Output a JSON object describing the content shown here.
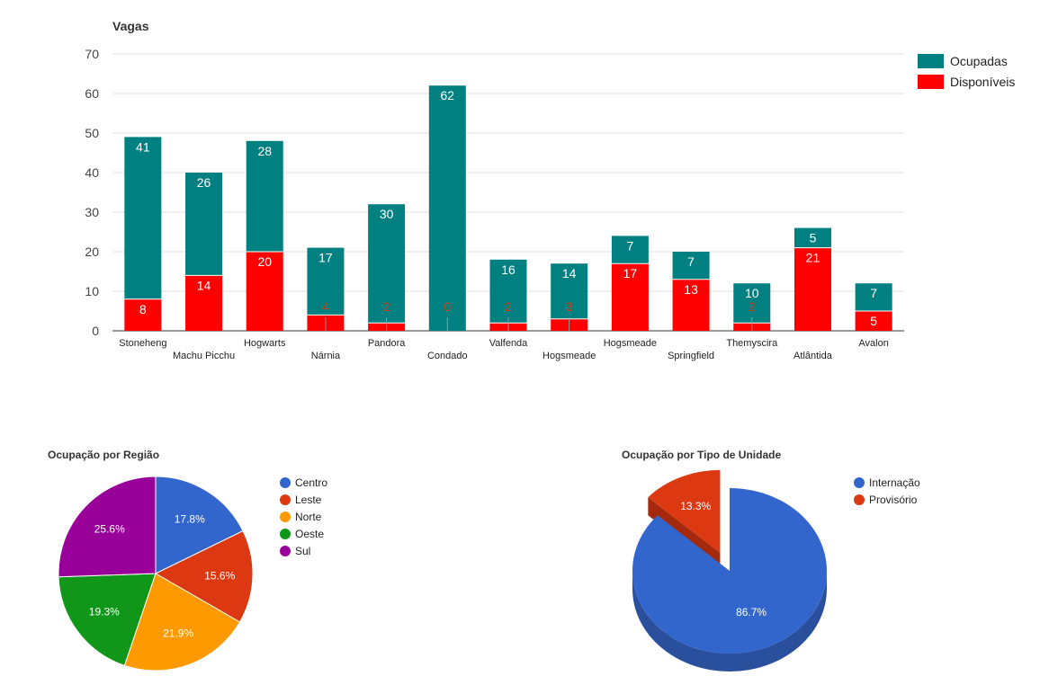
{
  "chart_data": [
    {
      "type": "bar",
      "stacked": true,
      "title": "Vagas",
      "categories": [
        "Stoneheng",
        "Machu Picchu",
        "Hogwarts",
        "Nárnia",
        "Pandora",
        "Condado",
        "Valfenda",
        "Hogsmeade",
        "Hogsmeade",
        "Springfield",
        "Themyscira",
        "Atlântida",
        "Avalon"
      ],
      "series": [
        {
          "name": "Disponíveis",
          "color": "#ff0000",
          "values": [
            8,
            14,
            20,
            4,
            2,
            0,
            2,
            3,
            17,
            13,
            2,
            21,
            5
          ]
        },
        {
          "name": "Ocupadas",
          "color": "#008080",
          "values": [
            41,
            26,
            28,
            17,
            30,
            62,
            16,
            14,
            7,
            7,
            10,
            5,
            7
          ]
        }
      ],
      "ylim": [
        0,
        70
      ],
      "yticks": [
        0,
        10,
        20,
        30,
        40,
        50,
        60,
        70
      ],
      "grid": true,
      "legend_position": "right"
    },
    {
      "type": "pie",
      "title": "Ocupação por Região",
      "labels": [
        "Centro",
        "Leste",
        "Norte",
        "Oeste",
        "Sul"
      ],
      "values": [
        17.8,
        15.6,
        21.9,
        19.3,
        25.6
      ],
      "value_labels": [
        "17.8%",
        "15.6%",
        "21.9%",
        "19.3%",
        "25.6%"
      ],
      "colors": [
        "#3366cc",
        "#dc3912",
        "#ff9900",
        "#109618",
        "#990099"
      ],
      "legend_position": "right"
    },
    {
      "type": "pie",
      "style": "3d-exploded",
      "title": "Ocupação por Tipo de Unidade",
      "labels": [
        "Internação",
        "Provisório"
      ],
      "values": [
        86.7,
        13.3
      ],
      "value_labels": [
        "86.7%",
        "13.3%"
      ],
      "colors": [
        "#3366cc",
        "#dc3912"
      ],
      "side_colors": [
        "#2a4f9c",
        "#a5290d"
      ],
      "legend_position": "right"
    }
  ]
}
